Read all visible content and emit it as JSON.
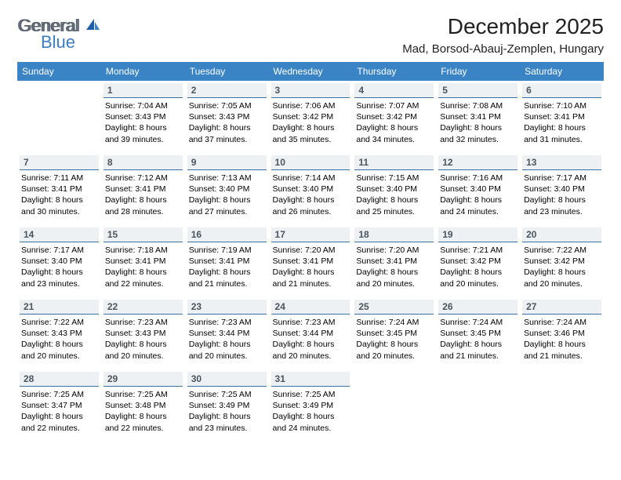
{
  "brand": {
    "part1": "General",
    "part2": "Blue"
  },
  "title": "December 2025",
  "location": "Mad, Borsod-Abauj-Zemplen, Hungary",
  "colors": {
    "header_bg": "#3a84c5",
    "header_text": "#ffffff",
    "daynum_bg": "#eef1f3",
    "daynum_border": "#3a72a5",
    "daynum_text": "#4a5560",
    "body_text": "#000000",
    "logo_gray": "#5c6670",
    "logo_blue": "#3a7fc1"
  },
  "typography": {
    "title_fontsize": 28,
    "location_fontsize": 15,
    "dow_fontsize": 12,
    "daynum_fontsize": 12,
    "info_fontsize": 10.5
  },
  "dow": [
    "Sunday",
    "Monday",
    "Tuesday",
    "Wednesday",
    "Thursday",
    "Friday",
    "Saturday"
  ],
  "weeks": [
    [
      null,
      {
        "n": "1",
        "sr": "Sunrise: 7:04 AM",
        "ss": "Sunset: 3:43 PM",
        "d1": "Daylight: 8 hours",
        "d2": "and 39 minutes."
      },
      {
        "n": "2",
        "sr": "Sunrise: 7:05 AM",
        "ss": "Sunset: 3:43 PM",
        "d1": "Daylight: 8 hours",
        "d2": "and 37 minutes."
      },
      {
        "n": "3",
        "sr": "Sunrise: 7:06 AM",
        "ss": "Sunset: 3:42 PM",
        "d1": "Daylight: 8 hours",
        "d2": "and 35 minutes."
      },
      {
        "n": "4",
        "sr": "Sunrise: 7:07 AM",
        "ss": "Sunset: 3:42 PM",
        "d1": "Daylight: 8 hours",
        "d2": "and 34 minutes."
      },
      {
        "n": "5",
        "sr": "Sunrise: 7:08 AM",
        "ss": "Sunset: 3:41 PM",
        "d1": "Daylight: 8 hours",
        "d2": "and 32 minutes."
      },
      {
        "n": "6",
        "sr": "Sunrise: 7:10 AM",
        "ss": "Sunset: 3:41 PM",
        "d1": "Daylight: 8 hours",
        "d2": "and 31 minutes."
      }
    ],
    [
      {
        "n": "7",
        "sr": "Sunrise: 7:11 AM",
        "ss": "Sunset: 3:41 PM",
        "d1": "Daylight: 8 hours",
        "d2": "and 30 minutes."
      },
      {
        "n": "8",
        "sr": "Sunrise: 7:12 AM",
        "ss": "Sunset: 3:41 PM",
        "d1": "Daylight: 8 hours",
        "d2": "and 28 minutes."
      },
      {
        "n": "9",
        "sr": "Sunrise: 7:13 AM",
        "ss": "Sunset: 3:40 PM",
        "d1": "Daylight: 8 hours",
        "d2": "and 27 minutes."
      },
      {
        "n": "10",
        "sr": "Sunrise: 7:14 AM",
        "ss": "Sunset: 3:40 PM",
        "d1": "Daylight: 8 hours",
        "d2": "and 26 minutes."
      },
      {
        "n": "11",
        "sr": "Sunrise: 7:15 AM",
        "ss": "Sunset: 3:40 PM",
        "d1": "Daylight: 8 hours",
        "d2": "and 25 minutes."
      },
      {
        "n": "12",
        "sr": "Sunrise: 7:16 AM",
        "ss": "Sunset: 3:40 PM",
        "d1": "Daylight: 8 hours",
        "d2": "and 24 minutes."
      },
      {
        "n": "13",
        "sr": "Sunrise: 7:17 AM",
        "ss": "Sunset: 3:40 PM",
        "d1": "Daylight: 8 hours",
        "d2": "and 23 minutes."
      }
    ],
    [
      {
        "n": "14",
        "sr": "Sunrise: 7:17 AM",
        "ss": "Sunset: 3:40 PM",
        "d1": "Daylight: 8 hours",
        "d2": "and 23 minutes."
      },
      {
        "n": "15",
        "sr": "Sunrise: 7:18 AM",
        "ss": "Sunset: 3:41 PM",
        "d1": "Daylight: 8 hours",
        "d2": "and 22 minutes."
      },
      {
        "n": "16",
        "sr": "Sunrise: 7:19 AM",
        "ss": "Sunset: 3:41 PM",
        "d1": "Daylight: 8 hours",
        "d2": "and 21 minutes."
      },
      {
        "n": "17",
        "sr": "Sunrise: 7:20 AM",
        "ss": "Sunset: 3:41 PM",
        "d1": "Daylight: 8 hours",
        "d2": "and 21 minutes."
      },
      {
        "n": "18",
        "sr": "Sunrise: 7:20 AM",
        "ss": "Sunset: 3:41 PM",
        "d1": "Daylight: 8 hours",
        "d2": "and 20 minutes."
      },
      {
        "n": "19",
        "sr": "Sunrise: 7:21 AM",
        "ss": "Sunset: 3:42 PM",
        "d1": "Daylight: 8 hours",
        "d2": "and 20 minutes."
      },
      {
        "n": "20",
        "sr": "Sunrise: 7:22 AM",
        "ss": "Sunset: 3:42 PM",
        "d1": "Daylight: 8 hours",
        "d2": "and 20 minutes."
      }
    ],
    [
      {
        "n": "21",
        "sr": "Sunrise: 7:22 AM",
        "ss": "Sunset: 3:43 PM",
        "d1": "Daylight: 8 hours",
        "d2": "and 20 minutes."
      },
      {
        "n": "22",
        "sr": "Sunrise: 7:23 AM",
        "ss": "Sunset: 3:43 PM",
        "d1": "Daylight: 8 hours",
        "d2": "and 20 minutes."
      },
      {
        "n": "23",
        "sr": "Sunrise: 7:23 AM",
        "ss": "Sunset: 3:44 PM",
        "d1": "Daylight: 8 hours",
        "d2": "and 20 minutes."
      },
      {
        "n": "24",
        "sr": "Sunrise: 7:23 AM",
        "ss": "Sunset: 3:44 PM",
        "d1": "Daylight: 8 hours",
        "d2": "and 20 minutes."
      },
      {
        "n": "25",
        "sr": "Sunrise: 7:24 AM",
        "ss": "Sunset: 3:45 PM",
        "d1": "Daylight: 8 hours",
        "d2": "and 20 minutes."
      },
      {
        "n": "26",
        "sr": "Sunrise: 7:24 AM",
        "ss": "Sunset: 3:45 PM",
        "d1": "Daylight: 8 hours",
        "d2": "and 21 minutes."
      },
      {
        "n": "27",
        "sr": "Sunrise: 7:24 AM",
        "ss": "Sunset: 3:46 PM",
        "d1": "Daylight: 8 hours",
        "d2": "and 21 minutes."
      }
    ],
    [
      {
        "n": "28",
        "sr": "Sunrise: 7:25 AM",
        "ss": "Sunset: 3:47 PM",
        "d1": "Daylight: 8 hours",
        "d2": "and 22 minutes."
      },
      {
        "n": "29",
        "sr": "Sunrise: 7:25 AM",
        "ss": "Sunset: 3:48 PM",
        "d1": "Daylight: 8 hours",
        "d2": "and 22 minutes."
      },
      {
        "n": "30",
        "sr": "Sunrise: 7:25 AM",
        "ss": "Sunset: 3:49 PM",
        "d1": "Daylight: 8 hours",
        "d2": "and 23 minutes."
      },
      {
        "n": "31",
        "sr": "Sunrise: 7:25 AM",
        "ss": "Sunset: 3:49 PM",
        "d1": "Daylight: 8 hours",
        "d2": "and 24 minutes."
      },
      null,
      null,
      null
    ]
  ]
}
